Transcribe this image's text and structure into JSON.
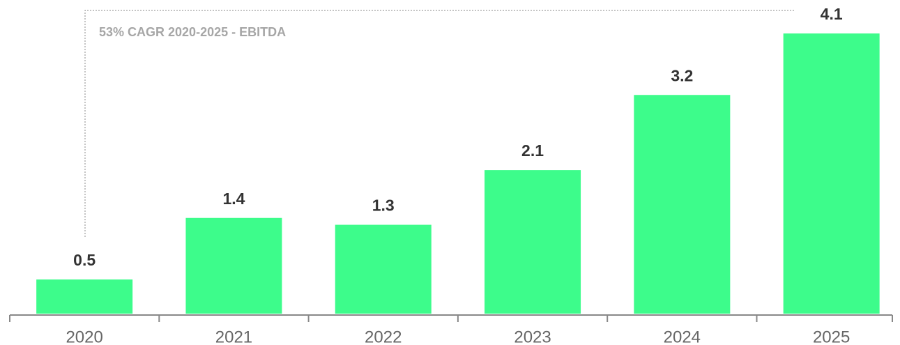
{
  "chart_data": {
    "type": "bar",
    "annotation": "53% CAGR 2020-2025 - EBITDA",
    "categories": [
      "2020",
      "2021",
      "2022",
      "2023",
      "2024",
      "2025"
    ],
    "values": [
      0.5,
      1.4,
      1.3,
      2.1,
      3.2,
      4.1
    ],
    "color": "#3dfc8b"
  }
}
